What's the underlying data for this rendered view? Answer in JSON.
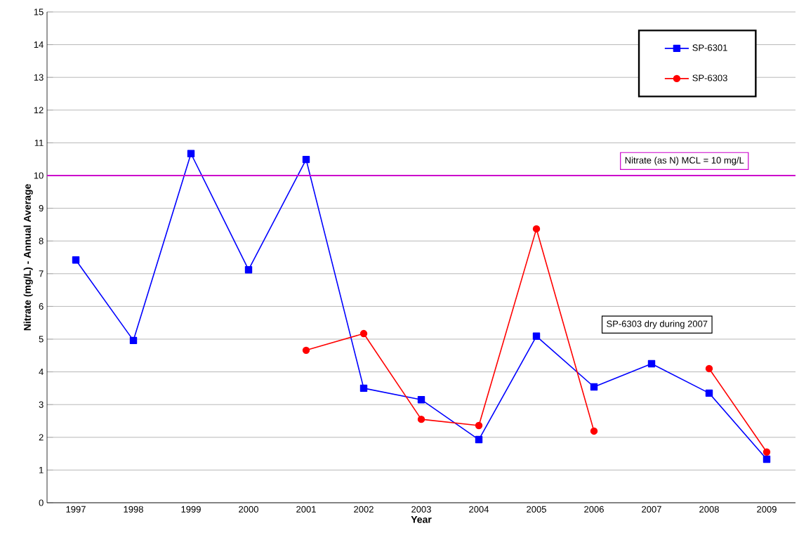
{
  "chart_data": {
    "type": "line",
    "xlabel": "Year",
    "ylabel": "Nitrate (mg/L) - Annual Average",
    "categories": [
      "1997",
      "1998",
      "1999",
      "2000",
      "2001",
      "2002",
      "2003",
      "2004",
      "2005",
      "2006",
      "2007",
      "2008",
      "2009"
    ],
    "series": [
      {
        "name": "SP-6301",
        "color": "#0000ff",
        "marker": "square",
        "values": [
          7.42,
          4.96,
          10.67,
          7.12,
          10.49,
          3.5,
          3.15,
          1.93,
          5.09,
          3.54,
          4.25,
          3.35,
          1.33
        ]
      },
      {
        "name": "SP-6303",
        "color": "#ff0000",
        "marker": "circle",
        "values": [
          null,
          null,
          null,
          null,
          4.66,
          5.17,
          2.55,
          2.36,
          8.37,
          2.19,
          null,
          4.1,
          1.55
        ]
      }
    ],
    "ylim": [
      0,
      15
    ],
    "yticks": [
      0,
      1,
      2,
      3,
      4,
      5,
      6,
      7,
      8,
      9,
      10,
      11,
      12,
      13,
      14,
      15
    ],
    "grid": "y",
    "legend": "top right",
    "line_style": "solid",
    "ref_lines": [
      {
        "axis": "y",
        "value": 10,
        "label": "Nitrate (as N) MCL = 10 mg/L",
        "color": "#cc00cc"
      }
    ],
    "annotations": [
      "SP-6303 dry during 2007"
    ]
  }
}
